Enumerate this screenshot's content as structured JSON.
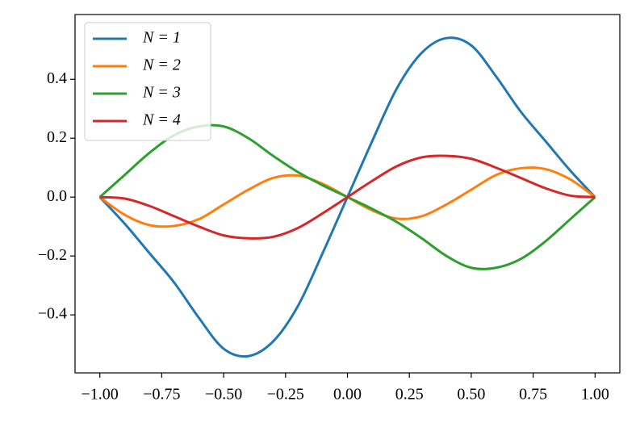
{
  "chart_data": {
    "type": "line",
    "x": [
      -1.0,
      -0.9,
      -0.8,
      -0.7,
      -0.6,
      -0.5,
      -0.4,
      -0.3,
      -0.2,
      -0.1,
      0.0,
      0.1,
      0.2,
      0.3,
      0.4,
      0.5,
      0.6,
      0.7,
      0.8,
      0.9,
      1.0
    ],
    "series": [
      {
        "name": "N = 1",
        "color": "#1f77b4",
        "values": [
          0,
          -0.09,
          -0.19,
          -0.29,
          -0.41,
          -0.515,
          -0.54,
          -0.49,
          -0.37,
          -0.19,
          0,
          0.19,
          0.37,
          0.49,
          0.54,
          0.515,
          0.41,
          0.29,
          0.19,
          0.09,
          0
        ]
      },
      {
        "name": "N = 2",
        "color": "#ff7f0e",
        "values": [
          0,
          -0.06,
          -0.095,
          -0.098,
          -0.075,
          -0.025,
          0.025,
          0.065,
          0.073,
          0.045,
          0,
          -0.045,
          -0.073,
          -0.065,
          -0.025,
          0.025,
          0.075,
          0.098,
          0.095,
          0.06,
          0
        ]
      },
      {
        "name": "N = 3",
        "color": "#2ca02c",
        "values": [
          0,
          0.075,
          0.15,
          0.21,
          0.24,
          0.24,
          0.2,
          0.14,
          0.085,
          0.04,
          0,
          -0.04,
          -0.085,
          -0.14,
          -0.2,
          -0.24,
          -0.24,
          -0.21,
          -0.15,
          -0.075,
          0
        ]
      },
      {
        "name": "N = 4",
        "color": "#d62728",
        "values": [
          0,
          -0.005,
          -0.03,
          -0.065,
          -0.1,
          -0.13,
          -0.14,
          -0.135,
          -0.105,
          -0.055,
          0,
          0.055,
          0.105,
          0.135,
          0.14,
          0.13,
          0.1,
          0.065,
          0.03,
          0.005,
          0
        ]
      }
    ],
    "xlim": [
      -1.1,
      1.1
    ],
    "ylim": [
      -0.597,
      0.62
    ],
    "xticks": [
      {
        "value": -1.0,
        "label": "−1.00"
      },
      {
        "value": -0.75,
        "label": "−0.75"
      },
      {
        "value": -0.5,
        "label": "−0.50"
      },
      {
        "value": -0.25,
        "label": "−0.25"
      },
      {
        "value": 0.0,
        "label": "0.00"
      },
      {
        "value": 0.25,
        "label": "0.25"
      },
      {
        "value": 0.5,
        "label": "0.50"
      },
      {
        "value": 0.75,
        "label": "0.75"
      },
      {
        "value": 1.0,
        "label": "1.00"
      }
    ],
    "yticks": [
      {
        "value": -0.4,
        "label": "−0.4"
      },
      {
        "value": -0.2,
        "label": "−0.2"
      },
      {
        "value": 0.0,
        "label": "0.0"
      },
      {
        "value": 0.2,
        "label": "0.2"
      },
      {
        "value": 0.4,
        "label": "0.4"
      }
    ],
    "legend": "upper left"
  }
}
